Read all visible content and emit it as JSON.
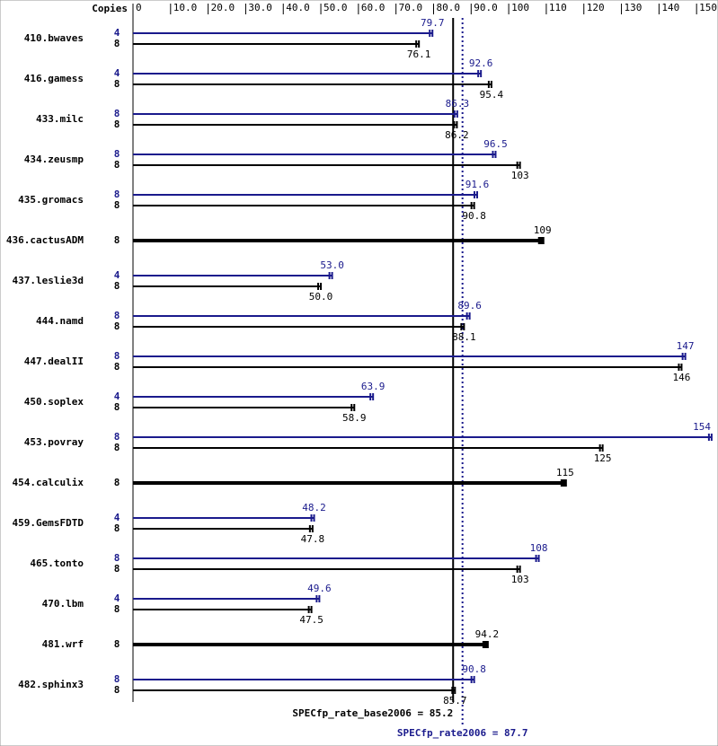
{
  "chart_data": {
    "type": "bar",
    "orientation": "horizontal",
    "copies_label": "Copies",
    "categories": [
      "410.bwaves",
      "416.gamess",
      "433.milc",
      "434.zeusmp",
      "435.gromacs",
      "436.cactusADM",
      "437.leslie3d",
      "444.namd",
      "447.dealII",
      "450.soplex",
      "453.povray",
      "454.calculix",
      "459.GemsFDTD",
      "465.tonto",
      "470.lbm",
      "481.wrf",
      "482.sphinx3"
    ],
    "series": [
      {
        "color": "#1a1a8c",
        "copies": [
          4,
          4,
          8,
          8,
          8,
          null,
          4,
          8,
          8,
          4,
          8,
          null,
          4,
          8,
          4,
          null,
          8
        ],
        "values": [
          79.7,
          92.6,
          86.3,
          96.5,
          91.6,
          null,
          53.0,
          89.6,
          147,
          63.9,
          154,
          null,
          48.2,
          108,
          49.6,
          null,
          90.8
        ],
        "value_labels": [
          "79.7",
          "92.6",
          "86.3",
          "96.5",
          "91.6",
          null,
          "53.0",
          "89.6",
          "147",
          "63.9",
          "154",
          null,
          "48.2",
          "108",
          "49.6",
          null,
          "90.8"
        ]
      },
      {
        "color": "#000000",
        "copies": [
          8,
          8,
          8,
          8,
          8,
          8,
          8,
          8,
          8,
          8,
          8,
          8,
          8,
          8,
          8,
          8,
          8
        ],
        "values": [
          76.1,
          95.4,
          86.2,
          103,
          90.8,
          109,
          50.0,
          88.1,
          146,
          58.9,
          125,
          115,
          47.8,
          103,
          47.5,
          94.2,
          85.7
        ],
        "value_labels": [
          "76.1",
          "95.4",
          "86.2",
          "103",
          "90.8",
          "109",
          "50.0",
          "88.1",
          "146",
          "58.9",
          "125",
          "115",
          "47.8",
          "103",
          "47.5",
          "94.2",
          "85.7"
        ]
      }
    ],
    "xlim": [
      0,
      155.7
    ],
    "xticks": [
      0,
      {
        "value": 10,
        "label": "10.0"
      },
      {
        "value": 20,
        "label": "20.0"
      },
      {
        "value": 30,
        "label": "30.0"
      },
      {
        "value": 40,
        "label": "40.0"
      },
      {
        "value": 50,
        "label": "50.0"
      },
      {
        "value": 60,
        "label": "60.0"
      },
      {
        "value": 70,
        "label": "70.0"
      },
      {
        "value": 80,
        "label": "80.0"
      },
      {
        "value": 90,
        "label": "90.0"
      },
      100,
      110,
      120,
      130,
      140,
      150
    ],
    "reference_lines": [
      {
        "value": 85.2,
        "label": "SPECfp_rate_base2006 = 85.2",
        "color": "#000000",
        "style": "solid"
      },
      {
        "value": 87.7,
        "label": "SPECfp_rate2006 = 87.7",
        "color": "#1a1a8c",
        "style": "dotted"
      }
    ]
  }
}
